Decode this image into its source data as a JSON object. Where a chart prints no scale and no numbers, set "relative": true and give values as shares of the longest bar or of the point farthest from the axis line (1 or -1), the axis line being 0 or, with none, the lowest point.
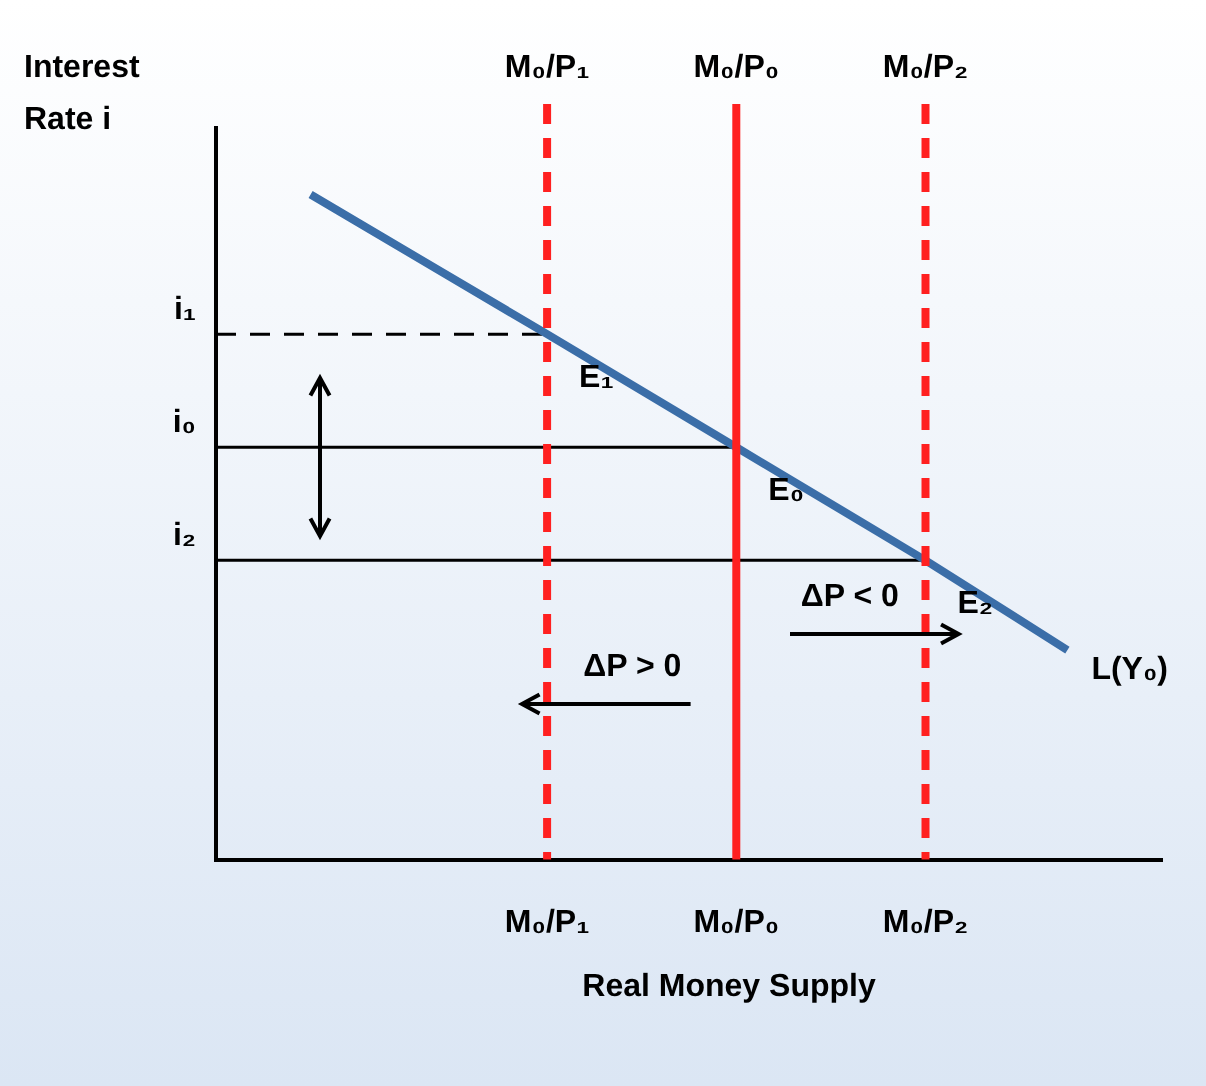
{
  "chart_data": {
    "type": "line",
    "relative": true,
    "xlabel": "Real Money Supply",
    "ylabel": "Interest Rate i",
    "grid": false,
    "legend": false,
    "marker": "none",
    "categories": [
      null,
      null,
      null,
      null,
      null,
      null,
      null,
      "M₀/P₁",
      null,
      null,
      null,
      "M₀/P₀",
      null,
      null,
      null,
      "M₀/P₂",
      null,
      null,
      null,
      null,
      null
    ],
    "series": [
      {
        "type": "line",
        "name": "L(Y₀)",
        "color": "#3b6ea8",
        "values": [
          null,
          null,
          1,
          null,
          null,
          null,
          null,
          0.79,
          null,
          null,
          null,
          0.62,
          null,
          null,
          null,
          0.45,
          null,
          null,
          0.315,
          null,
          null
        ],
        "line_style": "solid"
      },
      {
        "type": "line",
        "color": "#000000",
        "values": [
          0.79,
          null,
          null,
          null,
          null,
          null,
          null,
          0.79,
          null,
          null,
          null,
          null,
          null,
          null,
          null,
          null,
          null,
          null,
          null,
          null,
          null
        ],
        "line_style": "dashed"
      },
      {
        "type": "line",
        "color": "#000000",
        "values": [
          0.62,
          null,
          null,
          null,
          null,
          null,
          null,
          null,
          null,
          null,
          null,
          0.62,
          null,
          null,
          null,
          null,
          null,
          null,
          null,
          null,
          null
        ],
        "line_style": "solid"
      },
      {
        "type": "line",
        "color": "#000000",
        "values": [
          0.45,
          null,
          null,
          null,
          null,
          null,
          null,
          null,
          null,
          null,
          null,
          null,
          null,
          null,
          null,
          0.45,
          null,
          null,
          null,
          null,
          null
        ],
        "line_style": "solid"
      }
    ],
    "ref_lines": [
      {
        "axis": "x",
        "value": "M₀/P₁",
        "color": "#ff2020",
        "line_style": "dashed"
      },
      {
        "axis": "x",
        "value": "M₀/P₀",
        "color": "#ff2020",
        "line_style": "solid"
      },
      {
        "axis": "x",
        "value": "M₀/P₂",
        "color": "#ff2020",
        "line_style": "dashed"
      }
    ],
    "annotations": [
      "i₁",
      "i₀",
      "i₂",
      {
        "text": "E₁",
        "x": "M₀/P₁",
        "y": 0.79
      },
      {
        "text": "E₀",
        "x": "M₀/P₀",
        "y": 0.62
      },
      {
        "text": "E₂",
        "x": "M₀/P₂",
        "y": 0.45
      },
      "ΔP > 0",
      "ΔP < 0"
    ]
  }
}
